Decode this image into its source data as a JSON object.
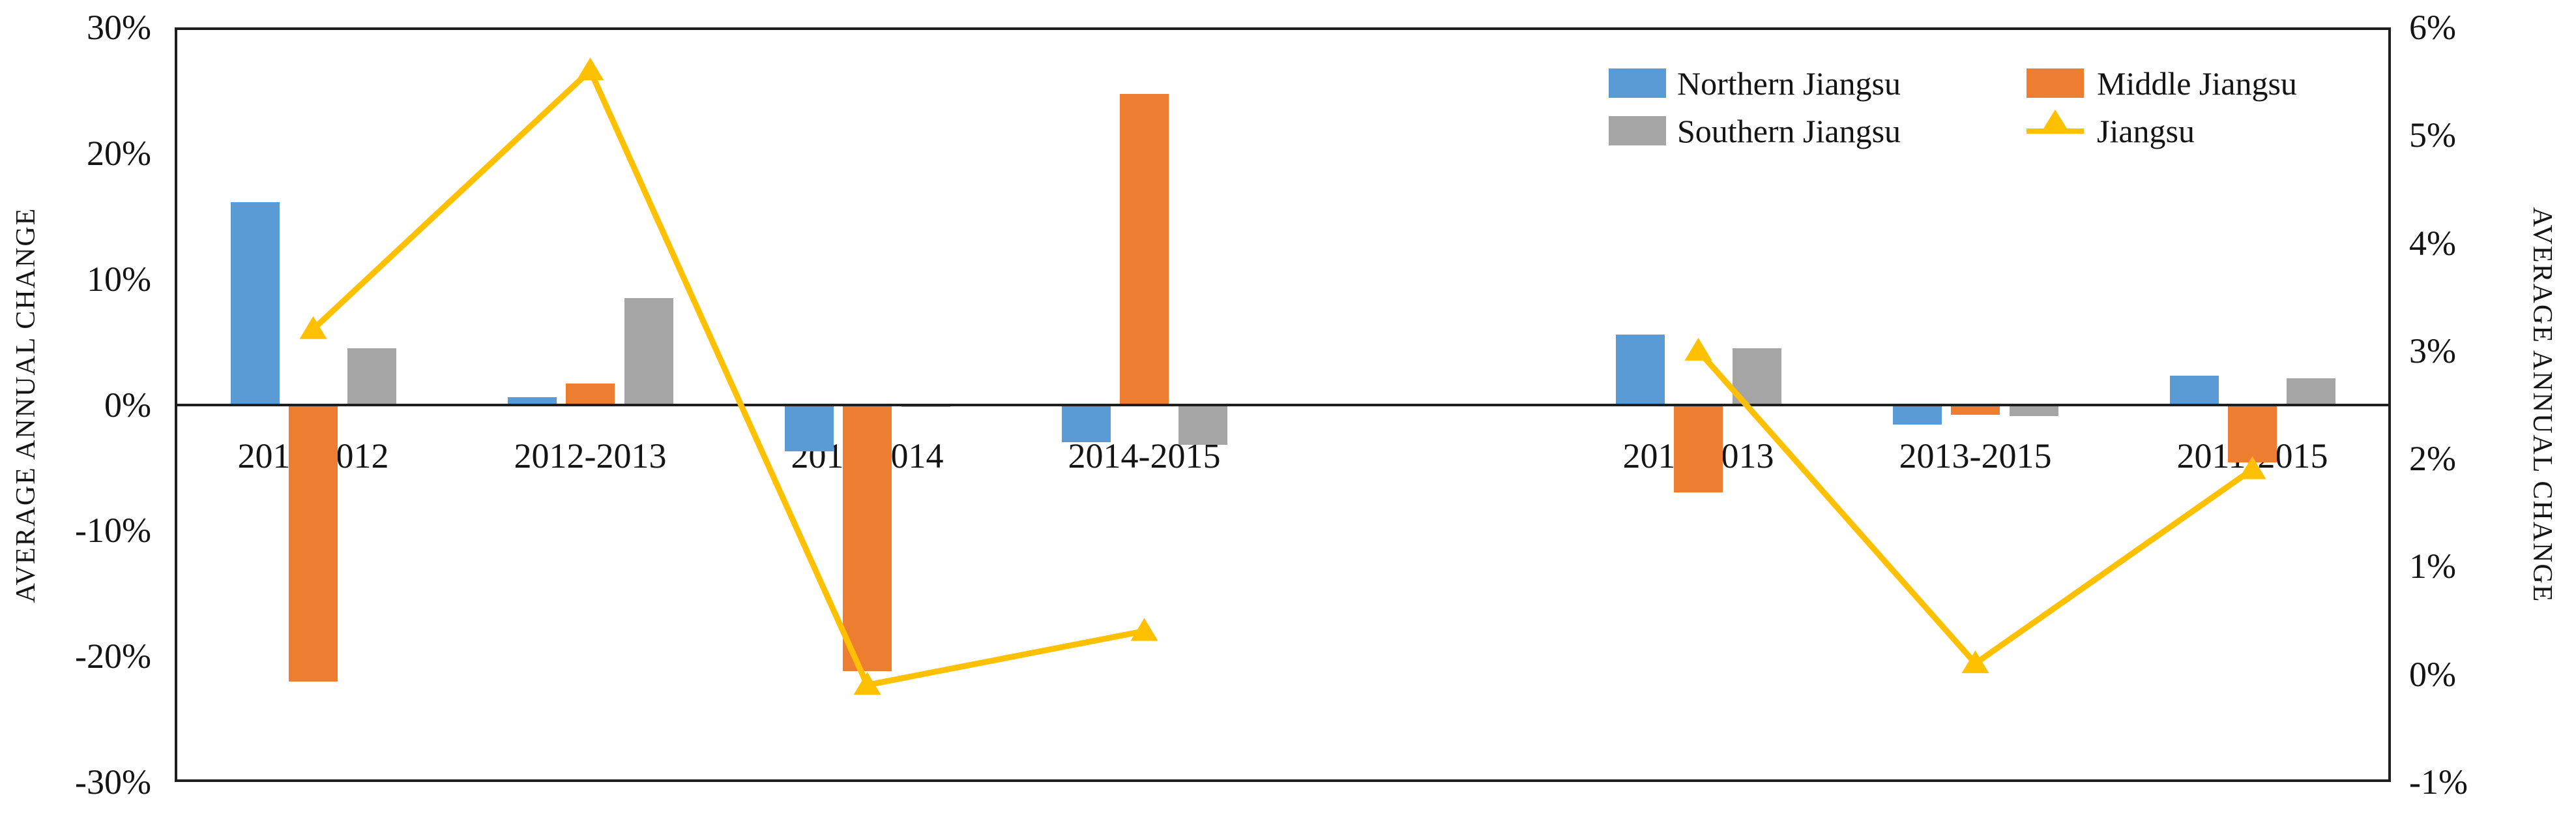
{
  "chart_data": {
    "type": "bar+line",
    "title": "",
    "categories": [
      "2011-2012",
      "2012-2013",
      "2013-2014",
      "2014-2015",
      "",
      "2011-2013",
      "2013-2015",
      "2011-2015"
    ],
    "bar_series": [
      {
        "name": "Northern Jiangsu",
        "color": "#5B9BD5",
        "axis": "left",
        "values": [
          16.1,
          0.6,
          -3.7,
          -3.0,
          null,
          5.6,
          -1.6,
          2.3
        ]
      },
      {
        "name": "Middle Jiangsu",
        "color": "#ED7D31",
        "axis": "left",
        "values": [
          -22.0,
          1.7,
          -21.2,
          24.7,
          null,
          -7.0,
          -0.8,
          -4.6
        ]
      },
      {
        "name": "Southern Jiangsu",
        "color": "#A5A5A5",
        "axis": "left",
        "values": [
          4.5,
          8.5,
          -0.2,
          -3.2,
          null,
          4.5,
          -0.9,
          2.1
        ]
      }
    ],
    "line_series": [
      {
        "name": "Jiangsu",
        "color": "#FFC000",
        "axis": "right",
        "marker": "triangle-up",
        "values": [
          3.2,
          5.6,
          -0.1,
          0.4,
          null,
          3.0,
          0.1,
          1.9
        ],
        "segments": [
          [
            0,
            3
          ],
          [
            5,
            7
          ]
        ]
      }
    ],
    "left_axis": {
      "title": "AVERAGE ANNUAL CHANGE",
      "tick_labels": [
        "30%",
        "20%",
        "10%",
        "0%",
        "-10%",
        "-20%",
        "-30%"
      ],
      "tick_values": [
        30,
        20,
        10,
        0,
        -10,
        -20,
        -30
      ],
      "min": -30,
      "max": 30
    },
    "right_axis": {
      "title": "AVERAGE ANNUAL CHANGE",
      "tick_labels": [
        "6%",
        "5%",
        "4%",
        "3%",
        "2%",
        "1%",
        "0%",
        "-1%"
      ],
      "tick_values": [
        6,
        5,
        4,
        3,
        2,
        1,
        0,
        -1
      ],
      "min": -1,
      "max": 6
    },
    "legend": {
      "items": [
        {
          "label": "Northern Jiangsu",
          "swatch": "blue-square",
          "color": "#5B9BD5"
        },
        {
          "label": "Middle Jiangsu",
          "swatch": "orange-square",
          "color": "#ED7D31"
        },
        {
          "label": "Southern Jiangsu",
          "swatch": "gray-square",
          "color": "#A5A5A5"
        },
        {
          "label": "Jiangsu",
          "swatch": "yellow-line-triangle",
          "color": "#FFC000"
        }
      ],
      "position": "top-right-inside"
    },
    "gridlines": false,
    "plot_border_color": "#1f1f1f",
    "background_color": "#ffffff"
  }
}
